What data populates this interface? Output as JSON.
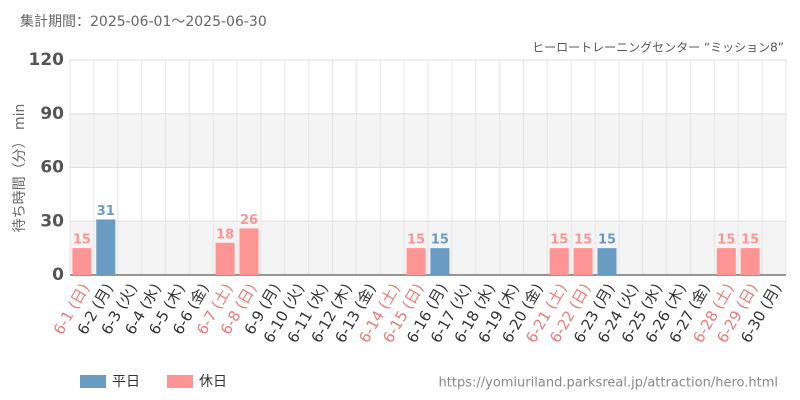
{
  "chart_data": {
    "type": "bar",
    "title": "集計期間：2025-06-01～2025-06-30",
    "subtitle": "ヒーロートレーニングセンター “ミッション8”",
    "y_label": "待ち時間（分） min",
    "source": "https://yomiuriland.parksreal.jp/attraction/hero.html",
    "categories": [
      "6-1 (日)",
      "6-2 (月)",
      "6-3 (火)",
      "6-4 (水)",
      "6-5 (木)",
      "6-6 (金)",
      "6-7 (土)",
      "6-8 (日)",
      "6-9 (月)",
      "6-10 (火)",
      "6-11 (水)",
      "6-12 (木)",
      "6-13 (金)",
      "6-14 (土)",
      "6-15 (日)",
      "6-16 (月)",
      "6-17 (火)",
      "6-18 (水)",
      "6-19 (木)",
      "6-20 (金)",
      "6-21 (土)",
      "6-22 (日)",
      "6-23 (月)",
      "6-24 (火)",
      "6-25 (水)",
      "6-26 (木)",
      "6-27 (金)",
      "6-28 (土)",
      "6-29 (日)",
      "6-30 (月)"
    ],
    "category_colors": [
      "#f07878",
      "#333333",
      "#333333",
      "#333333",
      "#333333",
      "#333333",
      "#f07878",
      "#f07878",
      "#333333",
      "#333333",
      "#333333",
      "#333333",
      "#333333",
      "#f07878",
      "#f07878",
      "#333333",
      "#333333",
      "#333333",
      "#333333",
      "#333333",
      "#f07878",
      "#f07878",
      "#333333",
      "#333333",
      "#333333",
      "#333333",
      "#333333",
      "#f07878",
      "#f07878",
      "#333333"
    ],
    "series": [
      {
        "name": "平日",
        "color": "#6a9bc3",
        "values": [
          null,
          31,
          null,
          null,
          null,
          null,
          null,
          null,
          null,
          null,
          null,
          null,
          null,
          null,
          null,
          15,
          null,
          null,
          null,
          null,
          null,
          null,
          15,
          null,
          null,
          null,
          null,
          null,
          null,
          null
        ]
      },
      {
        "name": "休日",
        "color": "#ff9494",
        "values": [
          15,
          null,
          null,
          null,
          null,
          null,
          18,
          26,
          null,
          null,
          null,
          null,
          null,
          null,
          15,
          null,
          null,
          null,
          null,
          null,
          15,
          15,
          null,
          null,
          null,
          null,
          null,
          15,
          15,
          null
        ]
      }
    ],
    "ylim": [
      0,
      120
    ],
    "yticks": [
      0,
      30,
      60,
      90,
      120
    ],
    "grid": true,
    "alternate_bands": true
  }
}
